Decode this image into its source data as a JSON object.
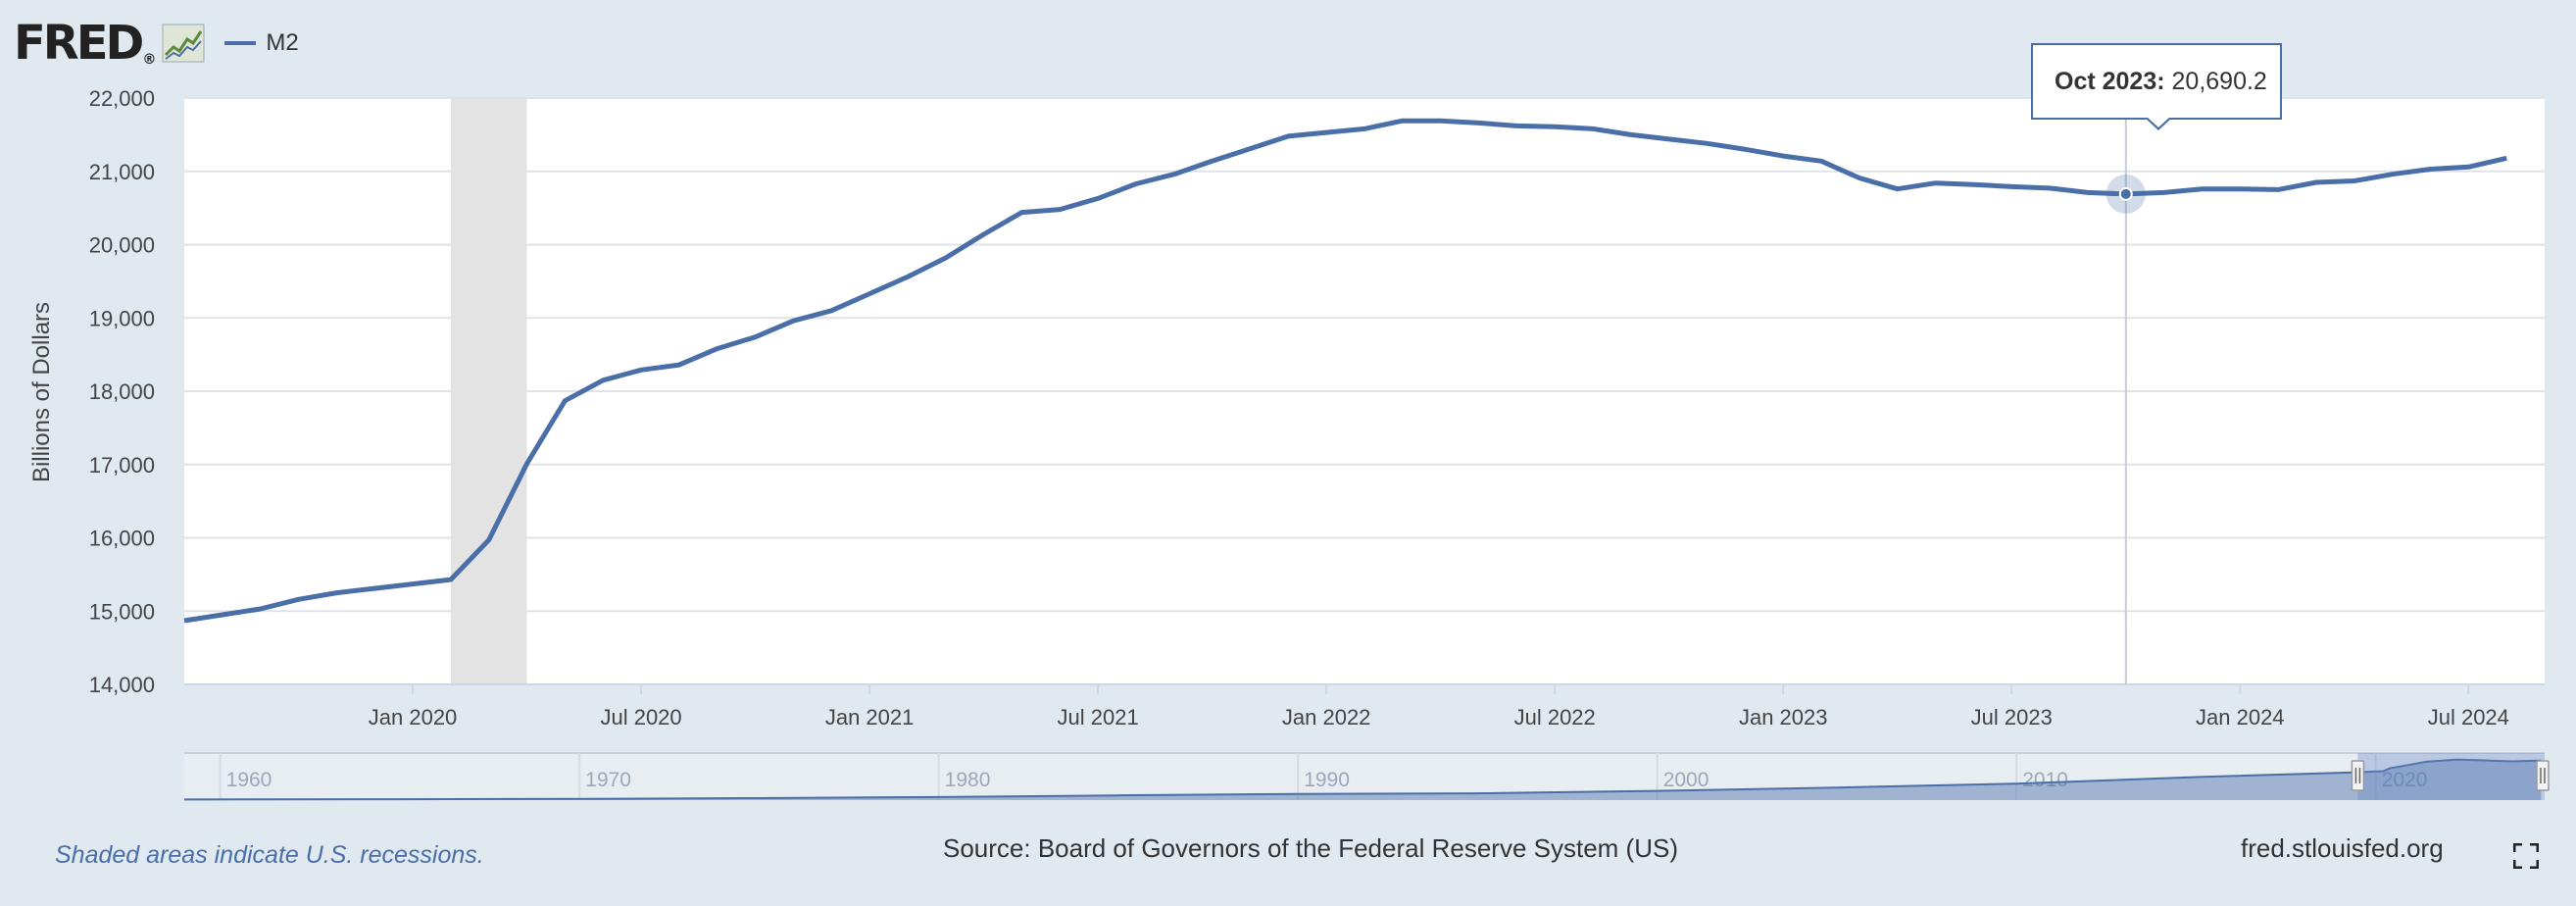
{
  "header": {
    "logo_text": "FRED",
    "logo_registered": "®",
    "logo_icon": "chart-line-icon",
    "legend": [
      {
        "label": "M2",
        "color": "#4a6ea8"
      }
    ]
  },
  "tooltip": {
    "label": "Oct 2023:",
    "value": "20,690.2",
    "date": "2023-10"
  },
  "footer": {
    "note": "Shaded areas indicate U.S. recessions.",
    "source": "Source: Board of Governors of the Federal Reserve System (US)",
    "site": "fred.stlouisfed.org",
    "fullscreen_icon": "fullscreen-icon"
  },
  "colors": {
    "line": "#4a6ea8",
    "recession": "#e3e3e3",
    "background": "#e1e9f0",
    "plot": "#ffffff",
    "grid": "#dfe3e8"
  },
  "chart_data": {
    "type": "line",
    "title": "",
    "xlabel": "",
    "ylabel": "Billions of Dollars",
    "ylim": [
      14000,
      22000
    ],
    "xlim": [
      "2019-07",
      "2024-09"
    ],
    "y_ticks": [
      "14,000",
      "15,000",
      "16,000",
      "17,000",
      "18,000",
      "19,000",
      "20,000",
      "21,000",
      "22,000"
    ],
    "x_ticks": [
      {
        "label": "Jan 2020",
        "date": "2020-01"
      },
      {
        "label": "Jul 2020",
        "date": "2020-07"
      },
      {
        "label": "Jan 2021",
        "date": "2021-01"
      },
      {
        "label": "Jul 2021",
        "date": "2021-07"
      },
      {
        "label": "Jan 2022",
        "date": "2022-01"
      },
      {
        "label": "Jul 2022",
        "date": "2022-07"
      },
      {
        "label": "Jan 2023",
        "date": "2023-01"
      },
      {
        "label": "Jul 2023",
        "date": "2023-07"
      },
      {
        "label": "Jan 2024",
        "date": "2024-01"
      },
      {
        "label": "Jul 2024",
        "date": "2024-07"
      }
    ],
    "grid": true,
    "legend_position": "top-left",
    "recessions": [
      {
        "start": "2020-02",
        "end": "2020-04"
      }
    ],
    "series": [
      {
        "name": "M2",
        "color": "#4a6ea8",
        "points": [
          [
            "2019-07",
            14870
          ],
          [
            "2019-08",
            14950
          ],
          [
            "2019-09",
            15030
          ],
          [
            "2019-10",
            15160
          ],
          [
            "2019-11",
            15250
          ],
          [
            "2019-12",
            15310
          ],
          [
            "2020-01",
            15370
          ],
          [
            "2020-02",
            15430
          ],
          [
            "2020-03",
            15970
          ],
          [
            "2020-04",
            17010
          ],
          [
            "2020-05",
            17870
          ],
          [
            "2020-06",
            18150
          ],
          [
            "2020-07",
            18290
          ],
          [
            "2020-08",
            18360
          ],
          [
            "2020-09",
            18580
          ],
          [
            "2020-10",
            18740
          ],
          [
            "2020-11",
            18960
          ],
          [
            "2020-12",
            19100
          ],
          [
            "2021-01",
            19330
          ],
          [
            "2021-02",
            19560
          ],
          [
            "2021-03",
            19820
          ],
          [
            "2021-04",
            20140
          ],
          [
            "2021-05",
            20440
          ],
          [
            "2021-06",
            20480
          ],
          [
            "2021-07",
            20630
          ],
          [
            "2021-08",
            20830
          ],
          [
            "2021-09",
            20960
          ],
          [
            "2021-10",
            21140
          ],
          [
            "2021-11",
            21310
          ],
          [
            "2021-12",
            21480
          ],
          [
            "2022-01",
            21530
          ],
          [
            "2022-02",
            21580
          ],
          [
            "2022-03",
            21690
          ],
          [
            "2022-04",
            21690
          ],
          [
            "2022-05",
            21660
          ],
          [
            "2022-06",
            21620
          ],
          [
            "2022-07",
            21610
          ],
          [
            "2022-08",
            21580
          ],
          [
            "2022-09",
            21500
          ],
          [
            "2022-10",
            21440
          ],
          [
            "2022-11",
            21380
          ],
          [
            "2022-12",
            21300
          ],
          [
            "2023-01",
            21210
          ],
          [
            "2023-02",
            21140
          ],
          [
            "2023-03",
            20910
          ],
          [
            "2023-04",
            20760
          ],
          [
            "2023-05",
            20840
          ],
          [
            "2023-06",
            20820
          ],
          [
            "2023-07",
            20790
          ],
          [
            "2023-08",
            20770
          ],
          [
            "2023-09",
            20710
          ],
          [
            "2023-10",
            20690.2
          ],
          [
            "2023-11",
            20710
          ],
          [
            "2023-12",
            20760
          ],
          [
            "2024-01",
            20760
          ],
          [
            "2024-02",
            20750
          ],
          [
            "2024-03",
            20850
          ],
          [
            "2024-04",
            20870
          ],
          [
            "2024-05",
            20960
          ],
          [
            "2024-06",
            21030
          ],
          [
            "2024-07",
            21060
          ],
          [
            "2024-08",
            21180
          ]
        ]
      }
    ],
    "navigator": {
      "x_ticks": [
        "1960",
        "1970",
        "1980",
        "1990",
        "2000",
        "2010",
        "2020"
      ],
      "range": [
        1959,
        2024.7
      ],
      "selected": [
        "2019-07",
        "2024-08"
      ],
      "points": [
        [
          1959,
          290
        ],
        [
          1965,
          460
        ],
        [
          1970,
          630
        ],
        [
          1975,
          1030
        ],
        [
          1980,
          1600
        ],
        [
          1985,
          2500
        ],
        [
          1990,
          3280
        ],
        [
          1995,
          3640
        ],
        [
          2000,
          4920
        ],
        [
          2005,
          6690
        ],
        [
          2010,
          8800
        ],
        [
          2015,
          12300
        ],
        [
          2019.5,
          14870
        ],
        [
          2020.2,
          15430
        ],
        [
          2020.4,
          17010
        ],
        [
          2020.9,
          18740
        ],
        [
          2021.4,
          20480
        ],
        [
          2022.25,
          21690
        ],
        [
          2023.0,
          21210
        ],
        [
          2023.8,
          20690
        ],
        [
          2024.6,
          21180
        ]
      ]
    }
  }
}
